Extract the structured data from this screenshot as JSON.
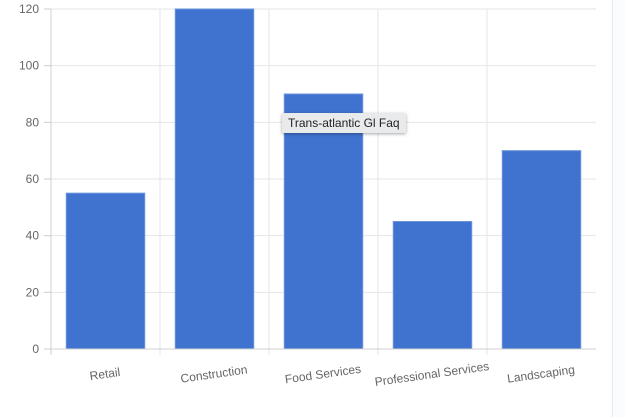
{
  "chart_data": {
    "type": "bar",
    "title": "",
    "xlabel": "",
    "ylabel": "",
    "categories": [
      "Retail",
      "Construction",
      "Food Services",
      "Professional Services",
      "Landscaping"
    ],
    "values": [
      55,
      120,
      90,
      45,
      70
    ],
    "ylim": [
      0,
      120
    ],
    "yticks": [
      0,
      20,
      40,
      60,
      80,
      100,
      120
    ],
    "grid": true,
    "legend": null,
    "bar_color": "#3f73cf"
  },
  "tooltip": {
    "text": "Trans-atlantic Gl Faq"
  },
  "colors": {
    "bar": "#3f73cf",
    "grid": "#e6e6e6",
    "axis": "#cccccc",
    "tick_text": "#666666"
  }
}
